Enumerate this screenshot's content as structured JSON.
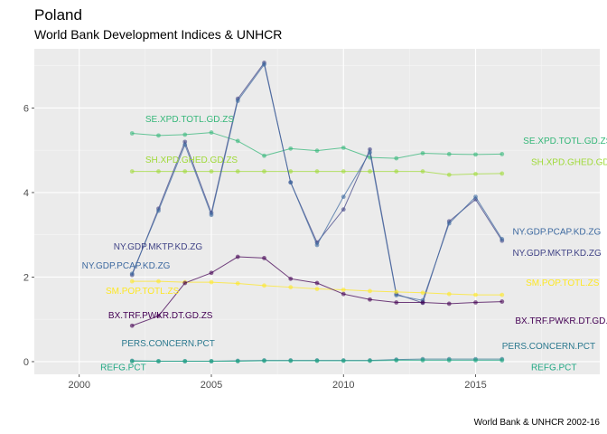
{
  "chart_data": {
    "type": "line",
    "title": "Poland",
    "subtitle": "World Bank Development Indices & UNHCR",
    "caption": "World Bank & UNHCR 2002-16",
    "xlabel": "",
    "ylabel": "",
    "xlim": [
      1998.3,
      2019.7
    ],
    "ylim": [
      -0.3,
      7.4
    ],
    "x_ticks": [
      2000,
      2005,
      2010,
      2015
    ],
    "y_ticks": [
      0,
      2,
      4,
      6
    ],
    "grid": true,
    "legend": "none",
    "x": [
      2002,
      2003,
      2004,
      2005,
      2006,
      2007,
      2008,
      2009,
      2010,
      2011,
      2012,
      2013,
      2014,
      2015,
      2016
    ],
    "series": [
      {
        "name": "SE.XPD.TOTL.GD.ZS",
        "color": "#35b779",
        "values": [
          5.4,
          5.35,
          5.37,
          5.42,
          5.22,
          4.87,
          5.04,
          4.99,
          5.06,
          4.83,
          4.81,
          4.93,
          4.91,
          4.9,
          4.91
        ]
      },
      {
        "name": "SH.XPD.GHED.GD.ZS",
        "color": "#a0da39",
        "values": [
          4.5,
          4.5,
          4.5,
          4.5,
          4.5,
          4.5,
          4.5,
          4.5,
          4.5,
          4.5,
          4.5,
          4.5,
          4.42,
          4.44,
          4.45
        ]
      },
      {
        "name": "NY.GDP.MKTP.KD.ZG",
        "color": "#414487",
        "values": [
          2.05,
          3.62,
          5.2,
          3.52,
          6.22,
          7.07,
          4.24,
          2.82,
          3.6,
          5.02,
          1.6,
          1.39,
          3.32,
          3.84,
          2.86
        ]
      },
      {
        "name": "NY.GDP.PCAP.KD.ZG",
        "color": "#3e6aa0",
        "values": [
          2.08,
          3.57,
          5.13,
          3.47,
          6.17,
          7.03,
          4.24,
          2.76,
          3.9,
          4.95,
          1.57,
          1.45,
          3.27,
          3.9,
          2.9
        ]
      },
      {
        "name": "SM.POP.TOTL.ZS",
        "color": "#fde725",
        "values": [
          1.9,
          1.9,
          1.88,
          1.88,
          1.85,
          1.8,
          1.76,
          1.72,
          1.7,
          1.67,
          1.65,
          1.63,
          1.6,
          1.58,
          1.58
        ]
      },
      {
        "name": "BX.TRF.PWKR.DT.GD.ZS",
        "color": "#440154",
        "values": [
          0.85,
          1.08,
          1.86,
          2.1,
          2.48,
          2.45,
          1.96,
          1.86,
          1.6,
          1.47,
          1.4,
          1.4,
          1.37,
          1.4,
          1.42
        ]
      },
      {
        "name": "PERS.CONCERN.PCT",
        "color": "#2a788e",
        "values": [
          0.02,
          0.01,
          0.01,
          0.01,
          0.02,
          0.03,
          0.03,
          0.03,
          0.03,
          0.03,
          0.05,
          0.06,
          0.06,
          0.06,
          0.06
        ]
      },
      {
        "name": "REFG.PCT",
        "color": "#22a884",
        "values": [
          0.01,
          0.01,
          0.01,
          0.01,
          0.01,
          0.02,
          0.02,
          0.02,
          0.02,
          0.02,
          0.03,
          0.03,
          0.03,
          0.03,
          0.03
        ]
      }
    ],
    "labels": [
      {
        "text": "SE.XPD.TOTL.GD.ZS",
        "color": "#35b779",
        "x": 2002.5,
        "y": 5.67
      },
      {
        "text": "SE.XPD.TOTL.GD.ZS",
        "color": "#35b779",
        "x": 2016.8,
        "y": 5.15
      },
      {
        "text": "SH.XPD.GHED.GD.ZS",
        "color": "#a0da39",
        "x": 2002.5,
        "y": 4.7
      },
      {
        "text": "SH.XPD.GHED.GD.ZS",
        "color": "#a0da39",
        "x": 2017.1,
        "y": 4.65
      },
      {
        "text": "NY.GDP.MKTP.KD.ZG",
        "color": "#414487",
        "x": 2001.3,
        "y": 2.65
      },
      {
        "text": "NY.GDP.MKTP.KD.ZG",
        "color": "#414487",
        "x": 2016.4,
        "y": 2.5
      },
      {
        "text": "NY.GDP.PCAP.KD.ZG",
        "color": "#3e6aa0",
        "x": 2000.1,
        "y": 2.2
      },
      {
        "text": "NY.GDP.PCAP.KD.ZG",
        "color": "#3e6aa0",
        "x": 2016.4,
        "y": 3.0
      },
      {
        "text": "SM.POP.TOTL.ZS",
        "color": "#fde725",
        "x": 2001.0,
        "y": 1.6
      },
      {
        "text": "SM.POP.TOTL.ZS",
        "color": "#fde725",
        "x": 2016.9,
        "y": 1.8
      },
      {
        "text": "BX.TRF.PWKR.DT.GD.ZS",
        "color": "#440154",
        "x": 2001.1,
        "y": 1.03
      },
      {
        "text": "BX.TRF.PWKR.DT.GD.ZS",
        "color": "#440154",
        "x": 2016.5,
        "y": 0.9
      },
      {
        "text": "PERS.CONCERN.PCT",
        "color": "#2a788e",
        "x": 2001.6,
        "y": 0.36
      },
      {
        "text": "PERS.CONCERN.PCT",
        "color": "#2a788e",
        "x": 2016.0,
        "y": 0.3
      },
      {
        "text": "REFG.PCT",
        "color": "#22a884",
        "x": 2000.8,
        "y": -0.2
      },
      {
        "text": "REFG.PCT",
        "color": "#22a884",
        "x": 2017.1,
        "y": -0.2
      }
    ]
  }
}
